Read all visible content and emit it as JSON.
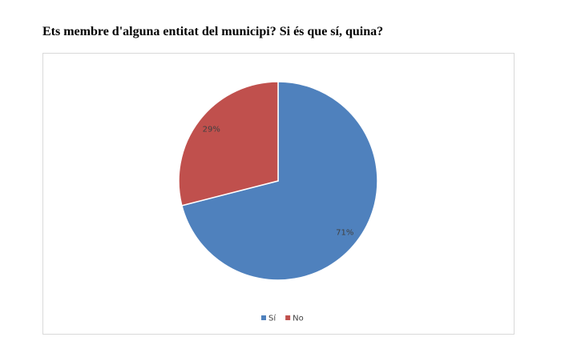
{
  "chart_data": {
    "type": "pie",
    "title": "Ets membre d'alguna entitat del municipi? Si és que sí, quina?",
    "categories": [
      "Sí",
      "No"
    ],
    "values": [
      71,
      29
    ],
    "value_labels": [
      "71%",
      "29%"
    ],
    "colors": [
      "#4f81bd",
      "#c0504d"
    ],
    "legend": "bottom"
  }
}
